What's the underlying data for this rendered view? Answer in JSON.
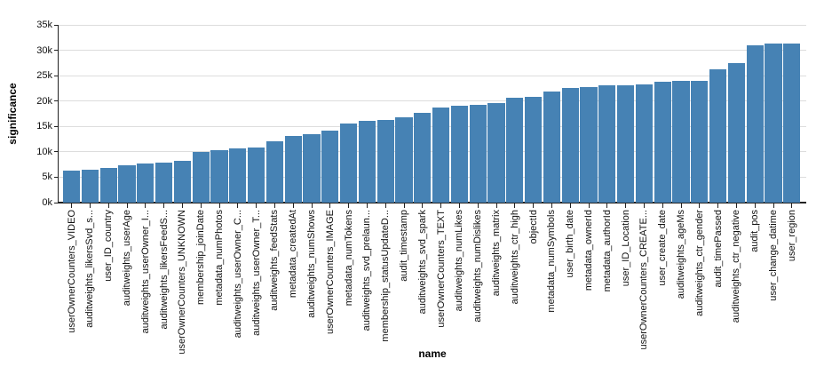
{
  "chart_data": {
    "type": "bar",
    "title": "",
    "xlabel": "name",
    "ylabel": "significance",
    "ylim": [
      0,
      35000
    ],
    "ytick_interval": 5000,
    "ytick_labels": [
      "0k",
      "5k",
      "10k",
      "15k",
      "20k",
      "25k",
      "30k",
      "35k"
    ],
    "grid": true,
    "legend": false,
    "x_label_rotation": -90,
    "colors": {
      "bar": "#4682B4",
      "gridline": "#dddddd",
      "axis": "#222222",
      "text": "#111111"
    },
    "categories": [
      "userOwnerCounters_VIDEO",
      "auditweights_likersSvd_s...",
      "user_ID_country",
      "auditweights_userAge",
      "auditweights_userOwner_I...",
      "auditweights_likersFeedS...",
      "userOwnerCounters_UNKNOWN",
      "membership_joinDate",
      "metadata_numPhotos",
      "auditweights_userOwner_C...",
      "auditweights_userOwner_T...",
      "auditweights_feedStats",
      "metadata_createdAt",
      "auditweights_numShows",
      "userOwnerCounters_IMAGE",
      "metadata_numTokens",
      "auditweights_svd_prelaun...",
      "membership_statusUpdateD...",
      "audit_timestamp",
      "auditweights_svd_spark",
      "userOwnerCounters_TEXT",
      "auditweights_numLikes",
      "auditweights_numDislikes",
      "auditweights_matrix",
      "auditweights_ctr_high",
      "objectId",
      "metadata_numSymbols",
      "user_birth_date",
      "metadata_ownerId",
      "metadata_authorId",
      "user_ID_Location",
      "userOwnerCounters_CREATE...",
      "user_create_date",
      "auditweights_ageMs",
      "auditweights_ctr_gender",
      "audit_timePassed",
      "auditweights_ctr_negative",
      "audit_pos",
      "user_change_datime",
      "user_region"
    ],
    "values": [
      6300,
      6500,
      6900,
      7300,
      7650,
      7950,
      8150,
      10050,
      10300,
      10600,
      10900,
      12100,
      13100,
      13400,
      14200,
      15650,
      16050,
      16300,
      16750,
      17700,
      18700,
      19100,
      19250,
      19550,
      20650,
      20850,
      21850,
      22650,
      22700,
      23050,
      23100,
      23350,
      23850,
      24000,
      24050,
      26300,
      27550,
      30950,
      31250,
      31400
    ]
  }
}
